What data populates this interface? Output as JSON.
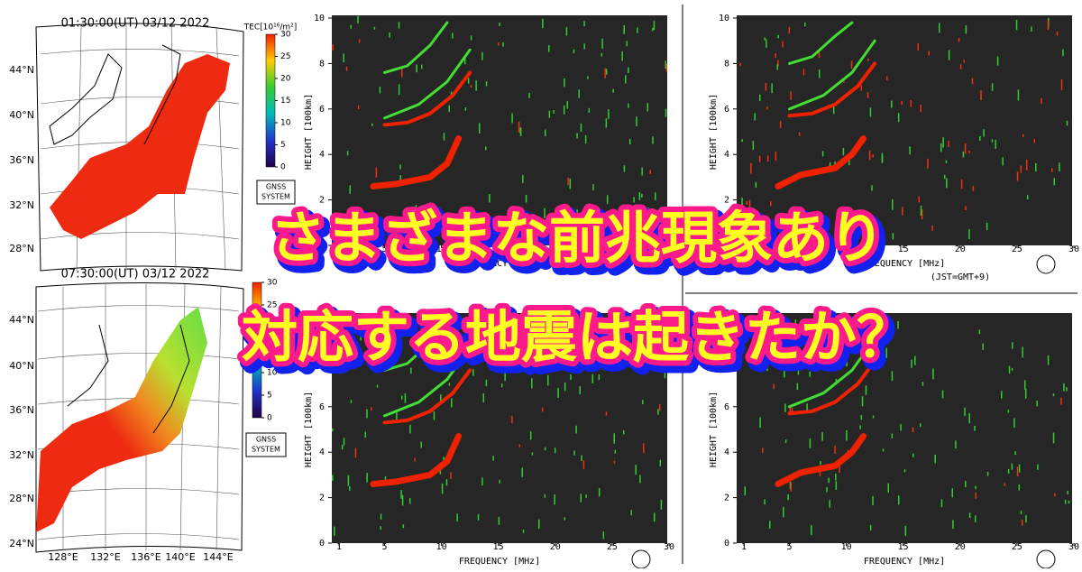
{
  "maps": [
    {
      "timestamp": "01:30:00(UT) 03/12 2022",
      "lat_labels": [
        "44°N",
        "40°N",
        "36°N",
        "32°N",
        "28°N"
      ],
      "badge": [
        "GNSS",
        "SYSTEM"
      ]
    },
    {
      "timestamp": "07:30:00(UT) 03/12 2022",
      "lat_labels": [
        "44°N",
        "40°N",
        "36°N",
        "32°N",
        "28°N",
        "24°N"
      ],
      "lon_labels": [
        "128°E",
        "132°E",
        "136°E",
        "140°E",
        "144°E"
      ],
      "badge": [
        "GNSS",
        "SYSTEM"
      ]
    }
  ],
  "colorbar": {
    "label": "TEC[10¹⁶/m²]",
    "ticks": [
      30,
      25,
      20,
      15,
      10,
      5,
      0
    ]
  },
  "ionogram": {
    "y_label": "HEIGHT [100km]",
    "x_label": "FREQUENCY [MHz]",
    "yticks": [
      0,
      2,
      4,
      6,
      8,
      10
    ],
    "xticks": [
      1,
      5,
      10,
      15,
      20,
      25,
      30
    ]
  },
  "caption": "(JST=GMT+9)",
  "headline": [
    "さまざまな前兆現象あり",
    "対応する地震は起きたか？"
  ]
}
